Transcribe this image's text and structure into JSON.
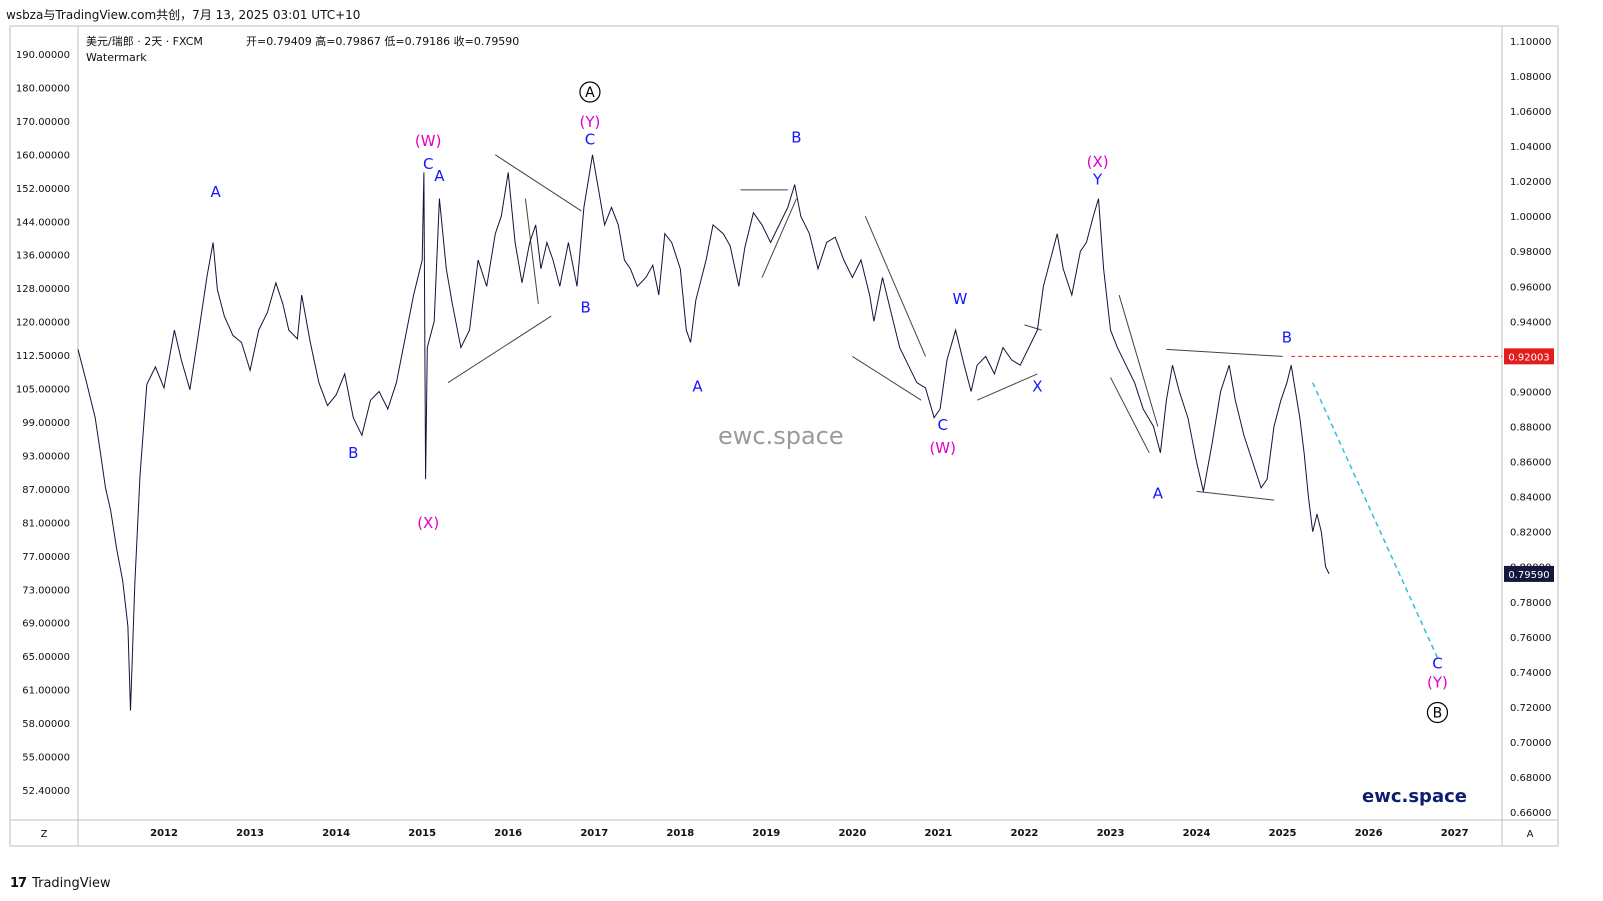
{
  "header": {
    "attribution": "wsbza与TradingView.com共创，7月 13, 2025 03:01 UTC+10"
  },
  "chart_title": {
    "symbol": "美元/瑞郎 · 2天 · FXCM",
    "ohlc": "开=0.79409  高=0.79867  低=0.79186  收=0.79590",
    "watermark_label": "Watermark"
  },
  "watermark": "ewc.space",
  "brand": "ewc.space",
  "footer": {
    "logo": "17",
    "name": "TradingView"
  },
  "axis_buttons": {
    "left": "Z",
    "right": "A"
  },
  "chart_data": {
    "type": "line",
    "title": "美元/瑞郎 · 2天 · FXCM",
    "x_range": [
      2011.0,
      2027.55
    ],
    "right_axis": {
      "ticks": [
        "1.10000",
        "1.08000",
        "1.06000",
        "1.04000",
        "1.02000",
        "1.00000",
        "0.98000",
        "0.96000",
        "0.94000",
        "0.92000",
        "0.90000",
        "0.88000",
        "0.86000",
        "0.84000",
        "0.82000",
        "0.80000",
        "0.78000",
        "0.76000",
        "0.74000",
        "0.72000",
        "0.70000",
        "0.68000",
        "0.66000"
      ],
      "range": [
        0.6555,
        1.1085
      ]
    },
    "left_axis": {
      "ticks": [
        "190.00000",
        "180.00000",
        "170.00000",
        "160.00000",
        "152.00000",
        "144.00000",
        "136.00000",
        "128.00000",
        "120.00000",
        "112.50000",
        "105.00000",
        "99.00000",
        "93.00000",
        "87.00000",
        "81.00000",
        "77.00000",
        "73.00000",
        "69.00000",
        "65.00000",
        "61.00000",
        "58.00000",
        "55.00000",
        "52.40000"
      ]
    },
    "x_ticks": [
      "2012",
      "2013",
      "2014",
      "2015",
      "2016",
      "2017",
      "2018",
      "2019",
      "2020",
      "2021",
      "2022",
      "2023",
      "2024",
      "2025",
      "2026",
      "2027"
    ],
    "series": [
      {
        "points": [
          [
            2011.0,
            0.924
          ],
          [
            2011.1,
            0.905
          ],
          [
            2011.2,
            0.885
          ],
          [
            2011.27,
            0.862
          ],
          [
            2011.32,
            0.845
          ],
          [
            2011.38,
            0.832
          ],
          [
            2011.45,
            0.81
          ],
          [
            2011.52,
            0.792
          ],
          [
            2011.58,
            0.766
          ],
          [
            2011.61,
            0.718
          ],
          [
            2011.66,
            0.79
          ],
          [
            2011.72,
            0.852
          ],
          [
            2011.8,
            0.904
          ],
          [
            2011.9,
            0.914
          ],
          [
            2012.0,
            0.902
          ],
          [
            2012.12,
            0.935
          ],
          [
            2012.2,
            0.918
          ],
          [
            2012.3,
            0.901
          ],
          [
            2012.4,
            0.933
          ],
          [
            2012.5,
            0.966
          ],
          [
            2012.57,
            0.985
          ],
          [
            2012.62,
            0.958
          ],
          [
            2012.7,
            0.943
          ],
          [
            2012.8,
            0.932
          ],
          [
            2012.9,
            0.928
          ],
          [
            2013.0,
            0.912
          ],
          [
            2013.1,
            0.935
          ],
          [
            2013.2,
            0.945
          ],
          [
            2013.3,
            0.962
          ],
          [
            2013.38,
            0.95
          ],
          [
            2013.45,
            0.935
          ],
          [
            2013.55,
            0.93
          ],
          [
            2013.6,
            0.955
          ],
          [
            2013.7,
            0.928
          ],
          [
            2013.8,
            0.905
          ],
          [
            2013.9,
            0.892
          ],
          [
            2014.0,
            0.898
          ],
          [
            2014.1,
            0.91
          ],
          [
            2014.2,
            0.885
          ],
          [
            2014.3,
            0.875
          ],
          [
            2014.4,
            0.895
          ],
          [
            2014.5,
            0.9
          ],
          [
            2014.6,
            0.89
          ],
          [
            2014.7,
            0.905
          ],
          [
            2014.8,
            0.93
          ],
          [
            2014.9,
            0.955
          ],
          [
            2015.0,
            0.975
          ],
          [
            2015.02,
            1.025
          ],
          [
            2015.04,
            0.85
          ],
          [
            2015.06,
            0.925
          ],
          [
            2015.14,
            0.94
          ],
          [
            2015.2,
            1.01
          ],
          [
            2015.28,
            0.97
          ],
          [
            2015.35,
            0.95
          ],
          [
            2015.45,
            0.925
          ],
          [
            2015.55,
            0.935
          ],
          [
            2015.65,
            0.975
          ],
          [
            2015.75,
            0.96
          ],
          [
            2015.85,
            0.99
          ],
          [
            2015.92,
            1.0
          ],
          [
            2016.0,
            1.025
          ],
          [
            2016.08,
            0.985
          ],
          [
            2016.16,
            0.962
          ],
          [
            2016.25,
            0.985
          ],
          [
            2016.32,
            0.995
          ],
          [
            2016.38,
            0.97
          ],
          [
            2016.45,
            0.985
          ],
          [
            2016.52,
            0.975
          ],
          [
            2016.6,
            0.96
          ],
          [
            2016.7,
            0.985
          ],
          [
            2016.8,
            0.96
          ],
          [
            2016.88,
            1.005
          ],
          [
            2016.98,
            1.035
          ],
          [
            2017.05,
            1.015
          ],
          [
            2017.12,
            0.995
          ],
          [
            2017.2,
            1.005
          ],
          [
            2017.28,
            0.995
          ],
          [
            2017.35,
            0.975
          ],
          [
            2017.42,
            0.97
          ],
          [
            2017.5,
            0.96
          ],
          [
            2017.6,
            0.965
          ],
          [
            2017.68,
            0.972
          ],
          [
            2017.75,
            0.955
          ],
          [
            2017.82,
            0.99
          ],
          [
            2017.9,
            0.985
          ],
          [
            2018.0,
            0.97
          ],
          [
            2018.07,
            0.935
          ],
          [
            2018.12,
            0.928
          ],
          [
            2018.18,
            0.952
          ],
          [
            2018.3,
            0.975
          ],
          [
            2018.38,
            0.995
          ],
          [
            2018.5,
            0.99
          ],
          [
            2018.58,
            0.983
          ],
          [
            2018.68,
            0.96
          ],
          [
            2018.75,
            0.982
          ],
          [
            2018.85,
            1.002
          ],
          [
            2018.95,
            0.995
          ],
          [
            2019.05,
            0.985
          ],
          [
            2019.15,
            0.995
          ],
          [
            2019.25,
            1.005
          ],
          [
            2019.33,
            1.018
          ],
          [
            2019.4,
            1.0
          ],
          [
            2019.5,
            0.99
          ],
          [
            2019.6,
            0.97
          ],
          [
            2019.7,
            0.985
          ],
          [
            2019.8,
            0.988
          ],
          [
            2019.9,
            0.975
          ],
          [
            2020.0,
            0.965
          ],
          [
            2020.1,
            0.975
          ],
          [
            2020.2,
            0.955
          ],
          [
            2020.25,
            0.94
          ],
          [
            2020.35,
            0.965
          ],
          [
            2020.45,
            0.945
          ],
          [
            2020.55,
            0.925
          ],
          [
            2020.65,
            0.915
          ],
          [
            2020.75,
            0.905
          ],
          [
            2020.85,
            0.902
          ],
          [
            2020.95,
            0.885
          ],
          [
            2021.02,
            0.89
          ],
          [
            2021.1,
            0.918
          ],
          [
            2021.2,
            0.935
          ],
          [
            2021.25,
            0.925
          ],
          [
            2021.3,
            0.915
          ],
          [
            2021.38,
            0.9
          ],
          [
            2021.45,
            0.915
          ],
          [
            2021.55,
            0.92
          ],
          [
            2021.65,
            0.91
          ],
          [
            2021.75,
            0.925
          ],
          [
            2021.85,
            0.918
          ],
          [
            2021.95,
            0.915
          ],
          [
            2022.05,
            0.925
          ],
          [
            2022.15,
            0.935
          ],
          [
            2022.22,
            0.96
          ],
          [
            2022.3,
            0.975
          ],
          [
            2022.38,
            0.99
          ],
          [
            2022.45,
            0.97
          ],
          [
            2022.55,
            0.955
          ],
          [
            2022.65,
            0.98
          ],
          [
            2022.72,
            0.985
          ],
          [
            2022.8,
            1.0
          ],
          [
            2022.86,
            1.01
          ],
          [
            2022.92,
            0.97
          ],
          [
            2023.0,
            0.935
          ],
          [
            2023.08,
            0.925
          ],
          [
            2023.18,
            0.915
          ],
          [
            2023.28,
            0.905
          ],
          [
            2023.38,
            0.89
          ],
          [
            2023.5,
            0.88
          ],
          [
            2023.58,
            0.865
          ],
          [
            2023.65,
            0.895
          ],
          [
            2023.72,
            0.915
          ],
          [
            2023.8,
            0.9
          ],
          [
            2023.9,
            0.885
          ],
          [
            2024.0,
            0.86
          ],
          [
            2024.08,
            0.843
          ],
          [
            2024.18,
            0.87
          ],
          [
            2024.28,
            0.9
          ],
          [
            2024.38,
            0.915
          ],
          [
            2024.45,
            0.895
          ],
          [
            2024.55,
            0.875
          ],
          [
            2024.65,
            0.86
          ],
          [
            2024.75,
            0.845
          ],
          [
            2024.82,
            0.85
          ],
          [
            2024.9,
            0.88
          ],
          [
            2024.98,
            0.895
          ],
          [
            2025.05,
            0.905
          ],
          [
            2025.1,
            0.915
          ],
          [
            2025.15,
            0.9
          ],
          [
            2025.2,
            0.885
          ],
          [
            2025.25,
            0.865
          ],
          [
            2025.3,
            0.84
          ],
          [
            2025.35,
            0.82
          ],
          [
            2025.4,
            0.83
          ],
          [
            2025.45,
            0.82
          ],
          [
            2025.5,
            0.8
          ],
          [
            2025.54,
            0.7959
          ]
        ]
      }
    ],
    "projection": {
      "from": [
        2025.35,
        0.905
      ],
      "to": [
        2026.8,
        0.748
      ],
      "color": "#29c3d6"
    },
    "current_price": {
      "value": "0.79590",
      "y": 0.7959,
      "bg": "#13163d"
    },
    "level_line": {
      "value": "0.92003",
      "y": 0.92003,
      "x_start": 2025.1,
      "color": "#e11d1d"
    },
    "colors": {
      "blue": "#1414ff",
      "magenta": "#e000c8",
      "price": "#15123a",
      "brand": "#0b1f6e"
    },
    "wave_labels": [
      {
        "t": "A",
        "x": 2012.6,
        "y": 1.011,
        "c": "blue"
      },
      {
        "t": "B",
        "x": 2014.2,
        "y": 0.862,
        "c": "blue"
      },
      {
        "t": "(W)",
        "x": 2015.07,
        "y": 1.04,
        "c": "magenta"
      },
      {
        "t": "C",
        "x": 2015.07,
        "y": 1.027,
        "c": "blue"
      },
      {
        "t": "A",
        "x": 2015.2,
        "y": 1.02,
        "c": "blue"
      },
      {
        "t": "(X)",
        "x": 2015.07,
        "y": 0.822,
        "c": "magenta"
      },
      {
        "t": "(Y)",
        "x": 2016.95,
        "y": 1.051,
        "c": "magenta"
      },
      {
        "t": "C",
        "x": 2016.95,
        "y": 1.041,
        "c": "blue"
      },
      {
        "t": "B",
        "x": 2016.9,
        "y": 0.945,
        "c": "blue"
      },
      {
        "t": "B",
        "x": 2019.35,
        "y": 1.042,
        "c": "blue"
      },
      {
        "t": "A",
        "x": 2018.2,
        "y": 0.9,
        "c": "blue"
      },
      {
        "t": "W",
        "x": 2021.25,
        "y": 0.95,
        "c": "blue"
      },
      {
        "t": "X",
        "x": 2022.15,
        "y": 0.9,
        "c": "blue"
      },
      {
        "t": "C",
        "x": 2021.05,
        "y": 0.878,
        "c": "blue"
      },
      {
        "t": "(W)",
        "x": 2021.05,
        "y": 0.865,
        "c": "magenta"
      },
      {
        "t": "(X)",
        "x": 2022.85,
        "y": 1.028,
        "c": "magenta"
      },
      {
        "t": "Y",
        "x": 2022.85,
        "y": 1.018,
        "c": "blue"
      },
      {
        "t": "A",
        "x": 2023.55,
        "y": 0.839,
        "c": "blue"
      },
      {
        "t": "B",
        "x": 2025.05,
        "y": 0.928,
        "c": "blue"
      },
      {
        "t": "C",
        "x": 2026.8,
        "y": 0.742,
        "c": "blue"
      },
      {
        "t": "(Y)",
        "x": 2026.8,
        "y": 0.731,
        "c": "magenta"
      }
    ],
    "circled_labels": [
      {
        "t": "A",
        "x": 2016.95,
        "y": 1.068
      },
      {
        "t": "B",
        "x": 2026.8,
        "y": 0.714
      }
    ],
    "pattern_lines": [
      [
        2015.3,
        0.905,
        2016.5,
        0.943
      ],
      [
        2015.85,
        1.035,
        2016.85,
        1.003
      ],
      [
        2016.2,
        1.01,
        2016.35,
        0.95
      ],
      [
        2018.7,
        1.015,
        2019.25,
        1.015
      ],
      [
        2018.95,
        0.965,
        2019.35,
        1.01
      ],
      [
        2020.15,
        1.0,
        2020.85,
        0.92
      ],
      [
        2020.0,
        0.92,
        2020.8,
        0.895
      ],
      [
        2021.45,
        0.895,
        2022.15,
        0.91
      ],
      [
        2022.0,
        0.938,
        2022.2,
        0.935
      ],
      [
        2023.1,
        0.955,
        2023.55,
        0.88
      ],
      [
        2023.0,
        0.908,
        2023.45,
        0.865
      ],
      [
        2023.65,
        0.924,
        2025.0,
        0.92
      ],
      [
        2024.0,
        0.843,
        2024.9,
        0.838
      ]
    ]
  }
}
